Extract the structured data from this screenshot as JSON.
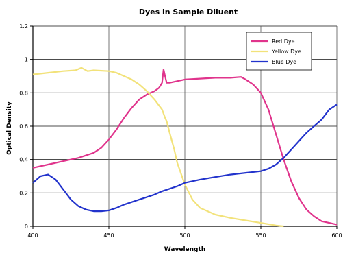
{
  "chart_data": {
    "type": "line",
    "title": "Dyes in Sample Diluent",
    "xlabel": "Wavelength",
    "ylabel": "Optical Density",
    "xlim": [
      400,
      600
    ],
    "ylim": [
      0,
      1.2
    ],
    "x_ticks": [
      400,
      450,
      500,
      550,
      600
    ],
    "y_ticks": [
      0,
      0.2,
      0.4,
      0.6,
      0.8,
      1,
      1.2
    ],
    "x_tick_labels": [
      "400",
      "450",
      "500",
      "550",
      "600"
    ],
    "y_tick_labels": [
      "0",
      "0.2",
      "0.4",
      "0.6",
      "0.8",
      "1",
      "1.2"
    ],
    "grid": true,
    "legend_position": "top-right",
    "series": [
      {
        "name": "Red Dye",
        "color": "#e0348c",
        "points": [
          [
            400,
            0.35
          ],
          [
            410,
            0.37
          ],
          [
            420,
            0.39
          ],
          [
            430,
            0.41
          ],
          [
            440,
            0.44
          ],
          [
            445,
            0.47
          ],
          [
            450,
            0.52
          ],
          [
            455,
            0.58
          ],
          [
            460,
            0.65
          ],
          [
            465,
            0.71
          ],
          [
            470,
            0.76
          ],
          [
            475,
            0.79
          ],
          [
            480,
            0.81
          ],
          [
            483,
            0.83
          ],
          [
            485,
            0.86
          ],
          [
            486,
            0.94
          ],
          [
            487,
            0.9
          ],
          [
            488,
            0.86
          ],
          [
            490,
            0.86
          ],
          [
            495,
            0.87
          ],
          [
            500,
            0.88
          ],
          [
            510,
            0.885
          ],
          [
            520,
            0.89
          ],
          [
            530,
            0.89
          ],
          [
            537,
            0.895
          ],
          [
            540,
            0.88
          ],
          [
            545,
            0.85
          ],
          [
            550,
            0.8
          ],
          [
            555,
            0.7
          ],
          [
            560,
            0.55
          ],
          [
            565,
            0.4
          ],
          [
            570,
            0.27
          ],
          [
            575,
            0.17
          ],
          [
            580,
            0.1
          ],
          [
            585,
            0.06
          ],
          [
            590,
            0.03
          ],
          [
            595,
            0.02
          ],
          [
            600,
            0.01
          ]
        ]
      },
      {
        "name": "Yellow Dye",
        "color": "#f2e27a",
        "points": [
          [
            400,
            0.91
          ],
          [
            410,
            0.92
          ],
          [
            420,
            0.93
          ],
          [
            428,
            0.935
          ],
          [
            432,
            0.95
          ],
          [
            436,
            0.93
          ],
          [
            440,
            0.935
          ],
          [
            450,
            0.93
          ],
          [
            455,
            0.92
          ],
          [
            460,
            0.9
          ],
          [
            465,
            0.88
          ],
          [
            470,
            0.85
          ],
          [
            475,
            0.81
          ],
          [
            480,
            0.76
          ],
          [
            485,
            0.7
          ],
          [
            487,
            0.65
          ],
          [
            488,
            0.63
          ],
          [
            490,
            0.56
          ],
          [
            493,
            0.46
          ],
          [
            495,
            0.38
          ],
          [
            500,
            0.25
          ],
          [
            505,
            0.16
          ],
          [
            510,
            0.11
          ],
          [
            520,
            0.07
          ],
          [
            530,
            0.05
          ],
          [
            540,
            0.035
          ],
          [
            550,
            0.02
          ],
          [
            560,
            0.005
          ],
          [
            565,
            0.0
          ]
        ]
      },
      {
        "name": "Blue Dye",
        "color": "#2233cc",
        "points": [
          [
            400,
            0.26
          ],
          [
            405,
            0.3
          ],
          [
            410,
            0.31
          ],
          [
            415,
            0.28
          ],
          [
            420,
            0.22
          ],
          [
            425,
            0.16
          ],
          [
            430,
            0.12
          ],
          [
            435,
            0.1
          ],
          [
            440,
            0.09
          ],
          [
            445,
            0.09
          ],
          [
            450,
            0.095
          ],
          [
            455,
            0.11
          ],
          [
            460,
            0.13
          ],
          [
            470,
            0.16
          ],
          [
            480,
            0.19
          ],
          [
            485,
            0.21
          ],
          [
            490,
            0.225
          ],
          [
            495,
            0.24
          ],
          [
            500,
            0.26
          ],
          [
            510,
            0.28
          ],
          [
            520,
            0.295
          ],
          [
            530,
            0.31
          ],
          [
            540,
            0.32
          ],
          [
            550,
            0.33
          ],
          [
            555,
            0.345
          ],
          [
            560,
            0.37
          ],
          [
            565,
            0.41
          ],
          [
            570,
            0.46
          ],
          [
            575,
            0.51
          ],
          [
            580,
            0.56
          ],
          [
            585,
            0.6
          ],
          [
            590,
            0.64
          ],
          [
            595,
            0.7
          ],
          [
            600,
            0.73
          ]
        ]
      }
    ]
  }
}
